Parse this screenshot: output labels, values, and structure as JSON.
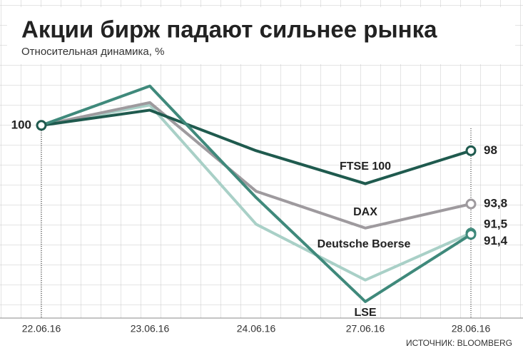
{
  "chart_data": {
    "type": "line",
    "title": "Акции бирж падают сильнее рынка",
    "subtitle": "Относительная динамика, %",
    "source": "ИСТОЧНИК: BLOOMBERG",
    "categories": [
      "22.06.16",
      "23.06.16",
      "24.06.16",
      "27.06.16",
      "28.06.16"
    ],
    "ylim": [
      84.8,
      104.6
    ],
    "series": [
      {
        "name": "FTSE 100",
        "color": "#1f5a4e",
        "values": [
          100,
          101.2,
          98,
          95.4,
          98
        ],
        "value_labels": [
          "100",
          null,
          null,
          null,
          "98"
        ]
      },
      {
        "name": "DAX",
        "color": "#9e9a9e",
        "values": [
          100,
          101.8,
          94.8,
          91.9,
          93.8
        ],
        "value_labels": [
          null,
          null,
          null,
          null,
          "93,8"
        ]
      },
      {
        "name": "Deutsche Boerse",
        "color": "#a9d0c7",
        "values": [
          100,
          101.6,
          92.2,
          87.8,
          91.5
        ],
        "value_labels": [
          null,
          null,
          null,
          null,
          "91,5"
        ]
      },
      {
        "name": "LSE",
        "color": "#3f897b",
        "values": [
          100,
          103.1,
          94.3,
          86.1,
          91.4
        ],
        "value_labels": [
          null,
          null,
          null,
          null,
          "91,4"
        ]
      }
    ]
  }
}
